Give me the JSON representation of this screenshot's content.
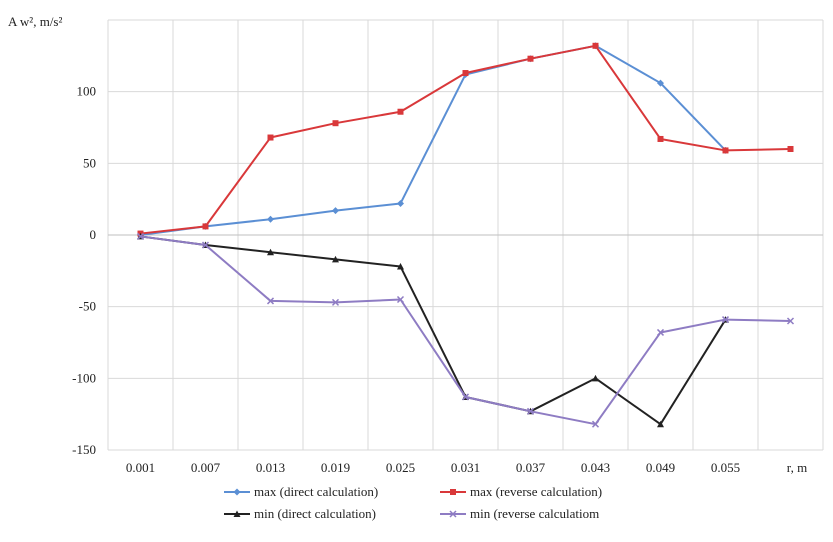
{
  "chart_data": {
    "type": "line",
    "ylabel": "A w², m/s²",
    "xlabel": "r, m",
    "categories": [
      "0.001",
      "0.007",
      "0.013",
      "0.019",
      "0.025",
      "0.031",
      "0.037",
      "0.043",
      "0.049",
      "0.055",
      ""
    ],
    "ylim": [
      -150,
      150
    ],
    "yticks": [
      -150,
      -100,
      -50,
      0,
      50,
      100
    ],
    "grid": true,
    "legend": "bottom",
    "series": [
      {
        "name": "max (direct calculation)",
        "color": "#5b8fd4",
        "marker": "diamond",
        "values": [
          0,
          6,
          11,
          17,
          22,
          112,
          123,
          132,
          106,
          59,
          null
        ]
      },
      {
        "name": "max (reverse calculation)",
        "color": "#d9383a",
        "marker": "square",
        "values": [
          1,
          6,
          68,
          78,
          86,
          113,
          123,
          132,
          67,
          59,
          60
        ]
      },
      {
        "name": "min (direct calculation)",
        "color": "#222222",
        "marker": "triangle",
        "values": [
          -1,
          -7,
          -12,
          -17,
          -22,
          -113,
          -123,
          -100,
          -132,
          -59,
          null
        ]
      },
      {
        "name": "min (reverse calculatiom",
        "color": "#8e7cc3",
        "marker": "x",
        "values": [
          -1,
          -7,
          -46,
          -47,
          -45,
          -113,
          -123,
          -132,
          -68,
          -59,
          -60
        ]
      }
    ]
  }
}
